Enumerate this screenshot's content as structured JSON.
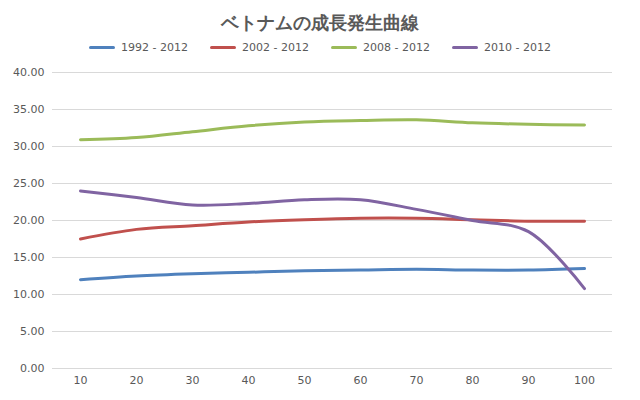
{
  "chart_data": {
    "type": "line",
    "title": "ベトナムの成長発生曲線",
    "categories": [
      10,
      20,
      30,
      40,
      50,
      60,
      70,
      80,
      90,
      100
    ],
    "series": [
      {
        "name": "1992 - 2012",
        "color": "#4f81bd",
        "values": [
          12.0,
          12.5,
          12.8,
          13.0,
          13.2,
          13.3,
          13.4,
          13.3,
          13.3,
          13.5
        ]
      },
      {
        "name": "2002 - 2012",
        "color": "#c0504d",
        "values": [
          17.5,
          18.8,
          19.3,
          19.8,
          20.1,
          20.3,
          20.3,
          20.1,
          19.9,
          19.9
        ]
      },
      {
        "name": "2008 - 2012",
        "color": "#9bbb59",
        "values": [
          30.9,
          31.2,
          32.0,
          32.8,
          33.3,
          33.5,
          33.6,
          33.2,
          33.0,
          32.9
        ]
      },
      {
        "name": "2010 - 2012",
        "color": "#8064a2",
        "values": [
          24.0,
          23.1,
          22.1,
          22.3,
          22.8,
          22.8,
          21.5,
          20.0,
          18.5,
          10.8
        ]
      }
    ],
    "ylim": [
      0,
      40
    ],
    "yticks": [
      {
        "value": 0,
        "label": "0.00"
      },
      {
        "value": 5,
        "label": "5.00"
      },
      {
        "value": 10,
        "label": "10.00"
      },
      {
        "value": 15,
        "label": "15.00"
      },
      {
        "value": 20,
        "label": "20.00"
      },
      {
        "value": 25,
        "label": "25.00"
      },
      {
        "value": 30,
        "label": "30.00"
      },
      {
        "value": 35,
        "label": "35.00"
      },
      {
        "value": 40,
        "label": "40.00"
      }
    ],
    "grid": true,
    "legend": "top"
  }
}
